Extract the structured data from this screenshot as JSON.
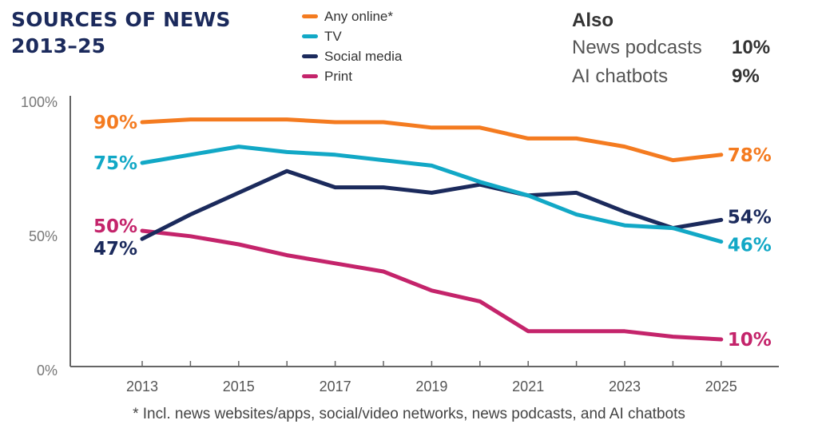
{
  "title_line1": "SOURCES OF NEWS",
  "title_line2": "2013–25",
  "also": {
    "heading": "Also",
    "items": [
      {
        "label": "News podcasts",
        "value": "10%"
      },
      {
        "label": "AI chatbots",
        "value": "9%"
      }
    ]
  },
  "footnote": "* Incl. news websites/apps, social/video networks, news podcasts, and AI chatbots",
  "chart_data": {
    "type": "line",
    "title": "SOURCES OF NEWS 2013–25",
    "xlabel": "",
    "ylabel": "",
    "x": [
      2013,
      2014,
      2015,
      2016,
      2017,
      2018,
      2019,
      2020,
      2021,
      2022,
      2023,
      2024,
      2025
    ],
    "x_tick_labels": [
      "2013",
      "2015",
      "2017",
      "2019",
      "2021",
      "2023",
      "2025"
    ],
    "y_tick_labels": [
      "100%",
      "50%",
      "0%"
    ],
    "y_ticks": [
      100,
      50,
      0
    ],
    "ylim": [
      0,
      100
    ],
    "grid": false,
    "legend_position": "top-center",
    "series": [
      {
        "name": "Any online*",
        "color": "#f47b20",
        "values": [
          90,
          91,
          91,
          91,
          90,
          90,
          88,
          88,
          84,
          84,
          81,
          76,
          78
        ],
        "start_label": "90%",
        "end_label": "78%"
      },
      {
        "name": "TV",
        "color": "#12a8c6",
        "values": [
          75,
          78,
          81,
          79,
          78,
          76,
          74,
          68,
          63,
          56,
          52,
          51,
          46
        ],
        "start_label": "75%",
        "end_label": "46%"
      },
      {
        "name": "Social media",
        "color": "#1b2a5c",
        "values": [
          47,
          56,
          64,
          72,
          66,
          66,
          64,
          67,
          63,
          64,
          57,
          51,
          54
        ],
        "start_label": "47%",
        "end_label": "54%"
      },
      {
        "name": "Print",
        "color": "#c4246b",
        "values": [
          50,
          48,
          45,
          41,
          38,
          35,
          28,
          24,
          13,
          13,
          13,
          11,
          10
        ],
        "start_label": "50%",
        "end_label": "10%"
      }
    ]
  }
}
